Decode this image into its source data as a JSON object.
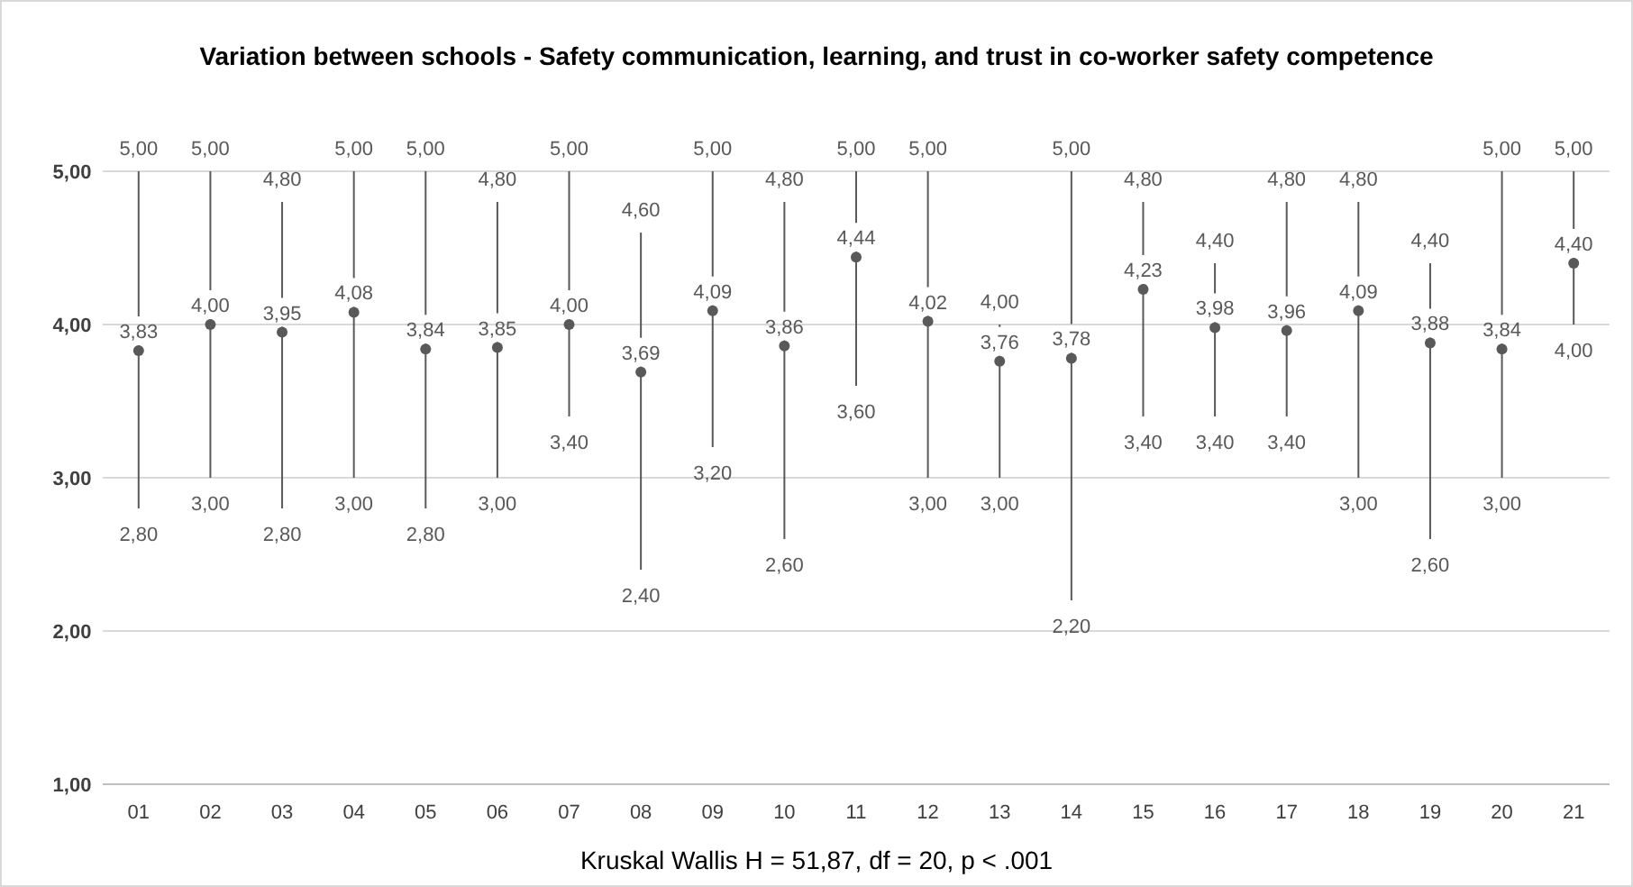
{
  "chart_data": {
    "type": "scatter",
    "title": "Variation between schools - Safety communication, learning, and trust in co-worker safety competence",
    "annotations": [
      "Kruskal Wallis H = 51,87, df = 20, p < .001",
      {
        "text": "5,00",
        "x": "01",
        "y": 5.0
      },
      {
        "text": "5,00",
        "x": "02",
        "y": 5.0
      },
      {
        "text": "4,80",
        "x": "03",
        "y": 4.8
      },
      {
        "text": "5,00",
        "x": "04",
        "y": 5.0
      },
      {
        "text": "5,00",
        "x": "05",
        "y": 5.0
      },
      {
        "text": "4,80",
        "x": "06",
        "y": 4.8
      },
      {
        "text": "5,00",
        "x": "07",
        "y": 5.0
      },
      {
        "text": "4,60",
        "x": "08",
        "y": 4.6
      },
      {
        "text": "5,00",
        "x": "09",
        "y": 5.0
      },
      {
        "text": "4,80",
        "x": "10",
        "y": 4.8
      },
      {
        "text": "5,00",
        "x": "11",
        "y": 5.0
      },
      {
        "text": "5,00",
        "x": "12",
        "y": 5.0
      },
      {
        "text": "4,00",
        "x": "13",
        "y": 4.0
      },
      {
        "text": "5,00",
        "x": "14",
        "y": 5.0
      },
      {
        "text": "4,80",
        "x": "15",
        "y": 4.8
      },
      {
        "text": "4,40",
        "x": "16",
        "y": 4.4
      },
      {
        "text": "4,80",
        "x": "17",
        "y": 4.8
      },
      {
        "text": "4,80",
        "x": "18",
        "y": 4.8
      },
      {
        "text": "4,40",
        "x": "19",
        "y": 4.4
      },
      {
        "text": "5,00",
        "x": "20",
        "y": 5.0
      },
      {
        "text": "5,00",
        "x": "21",
        "y": 5.0
      },
      {
        "text": "2,80",
        "x": "01",
        "y": 2.8
      },
      {
        "text": "3,00",
        "x": "02",
        "y": 3.0
      },
      {
        "text": "2,80",
        "x": "03",
        "y": 2.8
      },
      {
        "text": "3,00",
        "x": "04",
        "y": 3.0
      },
      {
        "text": "2,80",
        "x": "05",
        "y": 2.8
      },
      {
        "text": "3,00",
        "x": "06",
        "y": 3.0
      },
      {
        "text": "3,40",
        "x": "07",
        "y": 3.4
      },
      {
        "text": "2,40",
        "x": "08",
        "y": 2.4
      },
      {
        "text": "3,20",
        "x": "09",
        "y": 3.2
      },
      {
        "text": "2,60",
        "x": "10",
        "y": 2.6
      },
      {
        "text": "3,60",
        "x": "11",
        "y": 3.6
      },
      {
        "text": "3,00",
        "x": "12",
        "y": 3.0
      },
      {
        "text": "3,00",
        "x": "13",
        "y": 3.0
      },
      {
        "text": "2,20",
        "x": "14",
        "y": 2.2
      },
      {
        "text": "3,40",
        "x": "15",
        "y": 3.4
      },
      {
        "text": "3,40",
        "x": "16",
        "y": 3.4
      },
      {
        "text": "3,40",
        "x": "17",
        "y": 3.4
      },
      {
        "text": "3,00",
        "x": "18",
        "y": 3.0
      },
      {
        "text": "2,60",
        "x": "19",
        "y": 2.6
      },
      {
        "text": "3,00",
        "x": "20",
        "y": 3.0
      },
      {
        "text": "4,00",
        "x": "21",
        "y": 4.0
      }
    ],
    "categories": [
      "01",
      "02",
      "03",
      "04",
      "05",
      "06",
      "07",
      "08",
      "09",
      "10",
      "11",
      "12",
      "13",
      "14",
      "15",
      "16",
      "17",
      "18",
      "19",
      "20",
      "21"
    ],
    "series": [
      {
        "color": "#595959",
        "values": [
          3.83,
          4.0,
          3.95,
          4.08,
          3.84,
          3.85,
          4.0,
          3.69,
          4.09,
          3.86,
          4.44,
          4.02,
          3.76,
          3.78,
          4.23,
          3.98,
          3.96,
          4.09,
          3.88,
          3.84,
          4.4
        ],
        "value_labels": [
          "3,83",
          "4,00",
          "3,95",
          "4,08",
          "3,84",
          "3,85",
          "4,00",
          "3,69",
          "4,09",
          "3,86",
          "4,44",
          "4,02",
          "3,76",
          "3,78",
          "4,23",
          "3,98",
          "3,96",
          "4,09",
          "3,88",
          "3,84",
          "4,40"
        ],
        "errors": [
          [
            2.8,
            5.0
          ],
          [
            3.0,
            5.0
          ],
          [
            2.8,
            4.8
          ],
          [
            3.0,
            5.0
          ],
          [
            2.8,
            5.0
          ],
          [
            3.0,
            4.8
          ],
          [
            3.4,
            5.0
          ],
          [
            2.4,
            4.6
          ],
          [
            3.2,
            5.0
          ],
          [
            2.6,
            4.8
          ],
          [
            3.6,
            5.0
          ],
          [
            3.0,
            5.0
          ],
          [
            3.0,
            4.0
          ],
          [
            2.2,
            5.0
          ],
          [
            3.4,
            4.8
          ],
          [
            3.4,
            4.4
          ],
          [
            3.4,
            4.8
          ],
          [
            3.0,
            4.8
          ],
          [
            2.6,
            4.4
          ],
          [
            3.0,
            5.0
          ],
          [
            4.0,
            5.0
          ]
        ]
      }
    ],
    "marker": "circle",
    "ylim": [
      1,
      5
    ],
    "yticks": [
      {
        "value": 1,
        "label": "1,00"
      },
      {
        "value": 2,
        "label": "2,00"
      },
      {
        "value": 3,
        "label": "3,00"
      },
      {
        "value": 4,
        "label": "4,00"
      },
      {
        "value": 5,
        "label": "5,00"
      }
    ],
    "grid": "y"
  }
}
